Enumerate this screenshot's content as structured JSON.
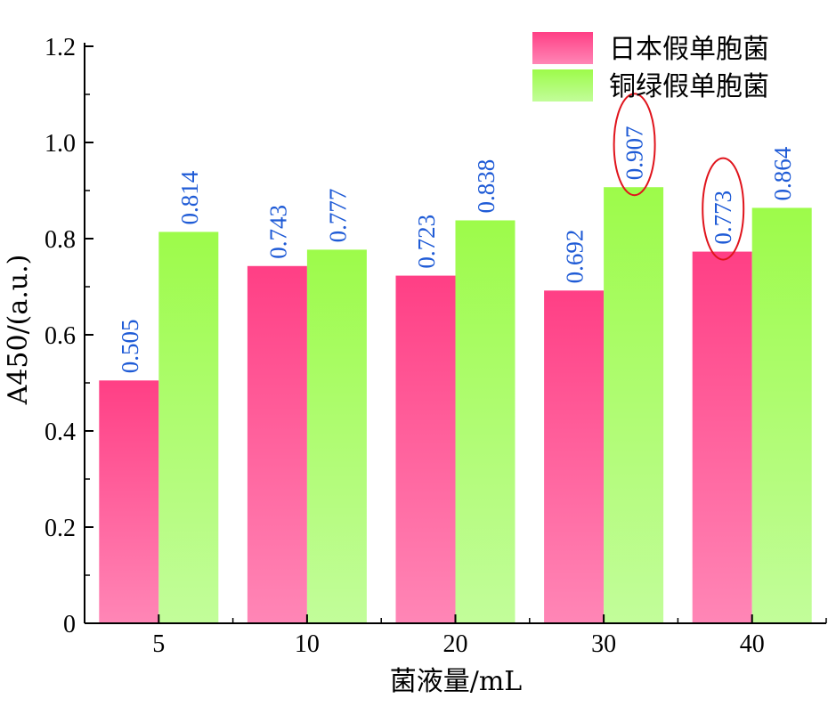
{
  "chart_data": {
    "type": "bar",
    "categories": [
      "5",
      "10",
      "20",
      "30",
      "40"
    ],
    "series": [
      {
        "name": "日本假单胞菌",
        "values": [
          0.505,
          0.743,
          0.723,
          0.692,
          0.773
        ],
        "color_top": "#ff3f85",
        "color_bottom": "#ff86b6"
      },
      {
        "name": "铜绿假单胞菌",
        "values": [
          0.814,
          0.777,
          0.838,
          0.907,
          0.864
        ],
        "color_top": "#9dfb4a",
        "color_bottom": "#c2fd9a"
      }
    ],
    "data_labels": [
      [
        "0.505",
        "0.743",
        "0.723",
        "0.692",
        "0.773"
      ],
      [
        "0.814",
        "0.777",
        "0.838",
        "0.907",
        "0.864"
      ]
    ],
    "xlabel": "菌液量/mL",
    "ylabel": "A450/(a.u.)",
    "ylim": [
      0,
      1.2
    ],
    "yticks": [
      "0",
      "0.2",
      "0.4",
      "0.6",
      "0.8",
      "1.0",
      "1.2"
    ],
    "ytick_values": [
      0,
      0.2,
      0.4,
      0.6,
      0.8,
      1.0,
      1.2
    ],
    "legend_position": "top-right",
    "grid": false,
    "highlighted": [
      {
        "series": 1,
        "category": "30"
      },
      {
        "series": 0,
        "category": "40"
      }
    ],
    "label_color": "#1f5bd6",
    "highlight_color": "#e0141c"
  }
}
